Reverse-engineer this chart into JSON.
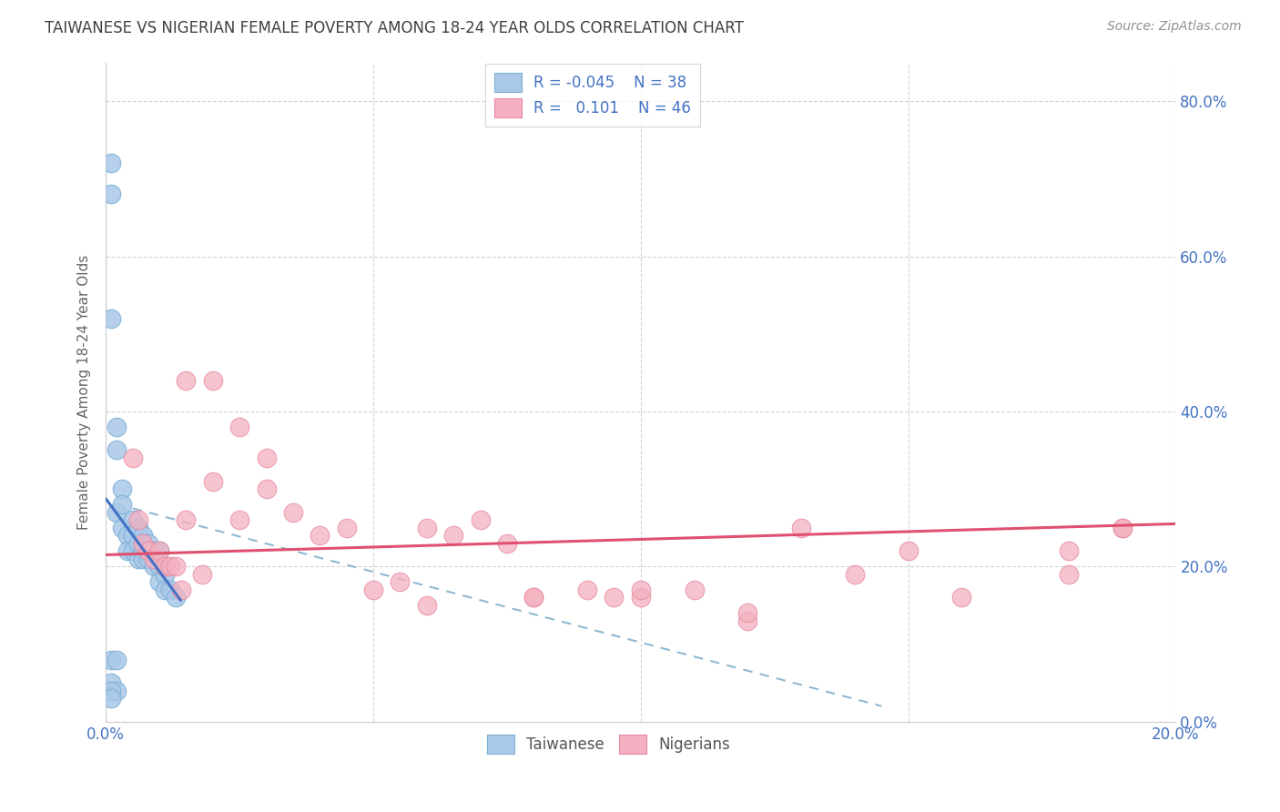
{
  "title": "TAIWANESE VS NIGERIAN FEMALE POVERTY AMONG 18-24 YEAR OLDS CORRELATION CHART",
  "source": "Source: ZipAtlas.com",
  "ylabel": "Female Poverty Among 18-24 Year Olds",
  "xlim": [
    0.0,
    0.2
  ],
  "ylim": [
    0.0,
    0.85
  ],
  "xticks": [
    0.0,
    0.05,
    0.1,
    0.15,
    0.2
  ],
  "yticks": [
    0.0,
    0.2,
    0.4,
    0.6,
    0.8
  ],
  "ytick_labels_right": [
    "0.0%",
    "20.0%",
    "40.0%",
    "60.0%",
    "80.0%"
  ],
  "xtick_labels": [
    "0.0%",
    "",
    "",
    "",
    "20.0%"
  ],
  "taiwanese_x": [
    0.001,
    0.001,
    0.001,
    0.002,
    0.002,
    0.002,
    0.003,
    0.003,
    0.003,
    0.004,
    0.004,
    0.005,
    0.005,
    0.005,
    0.006,
    0.006,
    0.006,
    0.007,
    0.007,
    0.007,
    0.008,
    0.008,
    0.008,
    0.009,
    0.009,
    0.01,
    0.01,
    0.01,
    0.011,
    0.011,
    0.012,
    0.013,
    0.001,
    0.001,
    0.002,
    0.002,
    0.001,
    0.001
  ],
  "taiwanese_y": [
    0.72,
    0.68,
    0.52,
    0.27,
    0.38,
    0.35,
    0.3,
    0.28,
    0.25,
    0.24,
    0.22,
    0.26,
    0.24,
    0.22,
    0.25,
    0.23,
    0.21,
    0.24,
    0.22,
    0.21,
    0.23,
    0.22,
    0.21,
    0.22,
    0.2,
    0.22,
    0.2,
    0.18,
    0.19,
    0.17,
    0.17,
    0.16,
    0.08,
    0.05,
    0.08,
    0.04,
    0.04,
    0.03
  ],
  "nigerian_x": [
    0.005,
    0.006,
    0.007,
    0.008,
    0.009,
    0.01,
    0.011,
    0.012,
    0.013,
    0.014,
    0.015,
    0.018,
    0.02,
    0.025,
    0.03,
    0.035,
    0.04,
    0.05,
    0.055,
    0.06,
    0.065,
    0.07,
    0.075,
    0.08,
    0.09,
    0.095,
    0.1,
    0.11,
    0.12,
    0.13,
    0.14,
    0.15,
    0.16,
    0.18,
    0.19,
    0.015,
    0.02,
    0.025,
    0.03,
    0.045,
    0.06,
    0.08,
    0.1,
    0.12,
    0.18,
    0.19
  ],
  "nigerian_y": [
    0.34,
    0.26,
    0.23,
    0.22,
    0.21,
    0.22,
    0.2,
    0.2,
    0.2,
    0.17,
    0.26,
    0.19,
    0.31,
    0.26,
    0.3,
    0.27,
    0.24,
    0.17,
    0.18,
    0.25,
    0.24,
    0.26,
    0.23,
    0.16,
    0.17,
    0.16,
    0.16,
    0.17,
    0.13,
    0.25,
    0.19,
    0.22,
    0.16,
    0.19,
    0.25,
    0.44,
    0.44,
    0.38,
    0.34,
    0.25,
    0.15,
    0.16,
    0.17,
    0.14,
    0.22,
    0.25
  ],
  "blue_dot_color": "#aac8e8",
  "blue_dot_edge": "#7aafd4",
  "pink_dot_color": "#f4b0c0",
  "pink_dot_edge": "#e888a0",
  "trend_blue_color": "#4472c4",
  "trend_pink_color": "#e05070",
  "trend_dashed_color": "#90b8d0",
  "grid_color": "#c8c8c8",
  "background_color": "#ffffff",
  "title_color": "#404040",
  "axis_label_color": "#4472c4",
  "source_color": "#909090",
  "legend_text_color": "#4472c4"
}
